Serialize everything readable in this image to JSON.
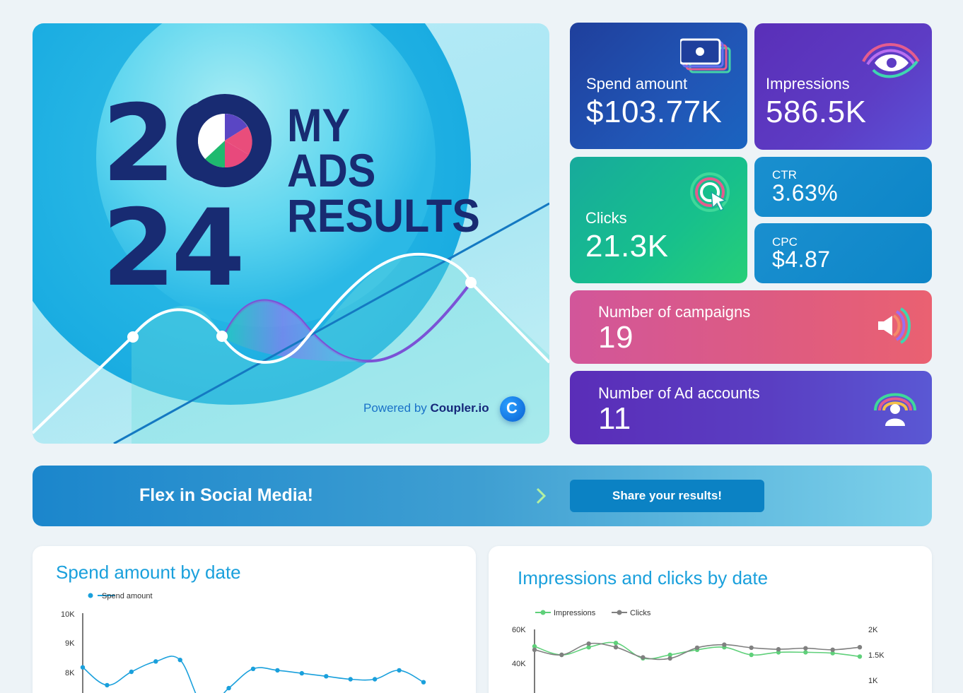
{
  "hero": {
    "year_top": "20",
    "year_bottom": "24",
    "headline": [
      "MY",
      "ADS",
      "RESULTS"
    ],
    "powered_prefix": "Powered by",
    "powered_brand": "Coupler.io",
    "logo_glyph": "C"
  },
  "kpis": {
    "spend": {
      "label": "Spend amount",
      "value": "$103.77K",
      "icon": "money-stack-icon"
    },
    "impressions": {
      "label": "Impressions",
      "value": "586.5K",
      "icon": "eye-icon"
    },
    "clicks": {
      "label": "Clicks",
      "value": "21.3K",
      "icon": "cursor-click-icon"
    },
    "ctr": {
      "label": "CTR",
      "value": "3.63%"
    },
    "cpc": {
      "label": "CPC",
      "value": "$4.87"
    },
    "campaigns": {
      "label": "Number of campaigns",
      "value": "19",
      "icon": "megaphone-icon"
    },
    "ad_accounts": {
      "label": "Number of Ad accounts",
      "value": "11",
      "icon": "user-broadcast-icon"
    }
  },
  "banner": {
    "text": "Flex in Social Media!",
    "button": "Share your results!"
  },
  "colors": {
    "accent": "#1aa0dc",
    "navy": "#182b72",
    "impressions_series": "#5fd07a",
    "clicks_series": "#808080"
  },
  "chart_data": [
    {
      "type": "line",
      "title": "Spend amount by date",
      "legend_position": "top-left",
      "series": [
        {
          "name": "Spend amount",
          "values": [
            8150,
            7550,
            8000,
            8350,
            8400,
            6800,
            7450,
            8100,
            8050,
            7950,
            7850,
            7750,
            7750,
            8050,
            7650
          ]
        }
      ],
      "y_ticks": [
        "10K",
        "9K",
        "8K"
      ],
      "ylim": [
        7000,
        10000
      ]
    },
    {
      "type": "line",
      "title": "Impressions and clicks by date",
      "legend_position": "top-left",
      "series": [
        {
          "name": "Impressions",
          "axis": "left",
          "values": [
            50000,
            45000,
            49500,
            52000,
            43000,
            45000,
            48000,
            49500,
            45000,
            46500,
            46500,
            46000,
            44000
          ]
        },
        {
          "name": "Clicks",
          "axis": "right",
          "values": [
            1600,
            1500,
            1720,
            1650,
            1450,
            1430,
            1640,
            1700,
            1640,
            1610,
            1630,
            1600,
            1650
          ]
        }
      ],
      "y_left_ticks": [
        "60K",
        "40K"
      ],
      "y_right_ticks": [
        "2K",
        "1.5K",
        "1K"
      ]
    }
  ]
}
